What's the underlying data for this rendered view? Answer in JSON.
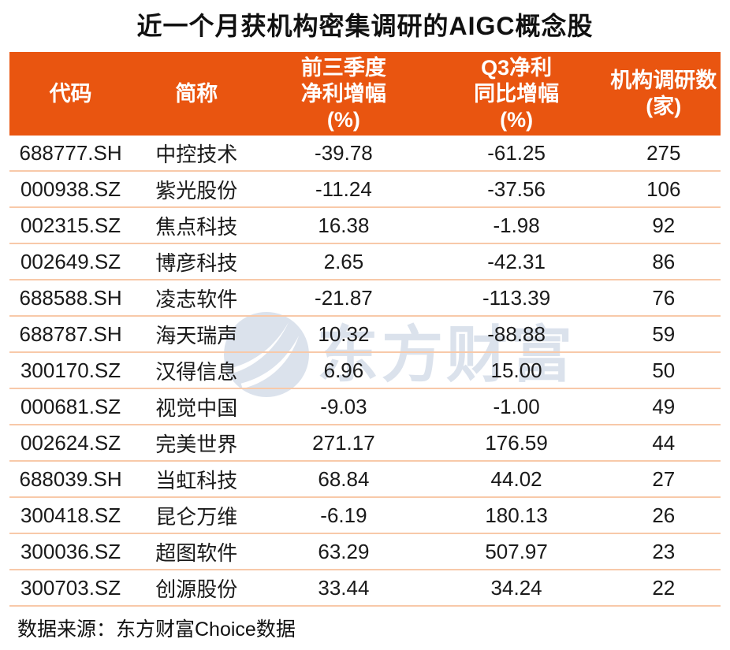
{
  "title": "近一个月获机构密集调研的AIGC概念股",
  "chart_data": {
    "type": "table",
    "title": "近一个月获机构密集调研的AIGC概念股",
    "columns": [
      "代码",
      "简称",
      "前三季度净利增幅(%)",
      "Q3净利同比增幅(%)",
      "机构调研数(家)"
    ],
    "header_lines": [
      [
        "代码"
      ],
      [
        "简称"
      ],
      [
        "前三季度",
        "净利增幅",
        "(%)"
      ],
      [
        "Q3净利",
        "同比增幅",
        "(%)"
      ],
      [
        "机构调研数",
        "(家)"
      ]
    ],
    "rows": [
      {
        "code": "688777.SH",
        "name": "中控技术",
        "ytd_growth": "-39.78",
        "q3_growth": "-61.25",
        "surveys": "275"
      },
      {
        "code": "000938.SZ",
        "name": "紫光股份",
        "ytd_growth": "-11.24",
        "q3_growth": "-37.56",
        "surveys": "106"
      },
      {
        "code": "002315.SZ",
        "name": "焦点科技",
        "ytd_growth": "16.38",
        "q3_growth": "-1.98",
        "surveys": "92"
      },
      {
        "code": "002649.SZ",
        "name": "博彦科技",
        "ytd_growth": "2.65",
        "q3_growth": "-42.31",
        "surveys": "86"
      },
      {
        "code": "688588.SH",
        "name": "凌志软件",
        "ytd_growth": "-21.87",
        "q3_growth": "-113.39",
        "surveys": "76"
      },
      {
        "code": "688787.SH",
        "name": "海天瑞声",
        "ytd_growth": "10.32",
        "q3_growth": "-88.88",
        "surveys": "59"
      },
      {
        "code": "300170.SZ",
        "name": "汉得信息",
        "ytd_growth": "6.96",
        "q3_growth": "15.00",
        "surveys": "50"
      },
      {
        "code": "000681.SZ",
        "name": "视觉中国",
        "ytd_growth": "-9.03",
        "q3_growth": "-1.00",
        "surveys": "49"
      },
      {
        "code": "002624.SZ",
        "name": "完美世界",
        "ytd_growth": "271.17",
        "q3_growth": "176.59",
        "surveys": "44"
      },
      {
        "code": "688039.SH",
        "name": "当虹科技",
        "ytd_growth": "68.84",
        "q3_growth": "44.02",
        "surveys": "27"
      },
      {
        "code": "300418.SZ",
        "name": "昆仑万维",
        "ytd_growth": "-6.19",
        "q3_growth": "180.13",
        "surveys": "26"
      },
      {
        "code": "300036.SZ",
        "name": "超图软件",
        "ytd_growth": "63.29",
        "q3_growth": "507.97",
        "surveys": "23"
      },
      {
        "code": "300703.SZ",
        "name": "创源股份",
        "ytd_growth": "33.44",
        "q3_growth": "34.24",
        "surveys": "22"
      }
    ]
  },
  "watermark": {
    "logo_icon": "eastmoney-swoosh-logo",
    "text": "东方财富"
  },
  "footer": {
    "source_label": "数据来源：东方财富Choice数据"
  },
  "colors": {
    "header_bg": "#e95510",
    "header_text": "#ffffff",
    "row_divider": "#f8c9a9",
    "body_text": "#1a1a1a",
    "title_text": "#111111",
    "watermark": "#dbe2ec"
  }
}
